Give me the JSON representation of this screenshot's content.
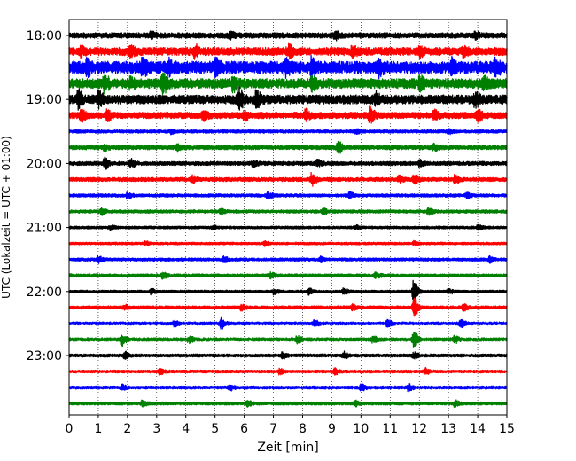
{
  "chart_data": {
    "type": "line",
    "title": "",
    "xlabel": "Zeit  [min]",
    "ylabel": "UTC (Lokalzeit = UTC + 01:00)",
    "xlim": [
      0,
      15
    ],
    "x_ticks": [
      "0",
      "1",
      "2",
      "3",
      "4",
      "5",
      "6",
      "7",
      "8",
      "9",
      "10",
      "11",
      "12",
      "13",
      "14",
      "15"
    ],
    "x_grid": true,
    "y_tick_labels": [
      "18:00",
      "19:00",
      "20:00",
      "21:00",
      "22:00",
      "23:00"
    ],
    "trace_interval_min": 15,
    "trace_color_cycle": [
      "#000000",
      "#ff0000",
      "#0000ff",
      "#008000"
    ],
    "traces": [
      {
        "start": "18:00",
        "color": "#000000",
        "level": 0.3,
        "events": [
          [
            2.8,
            0.25
          ],
          [
            5.5,
            0.3
          ],
          [
            9.1,
            0.35
          ],
          [
            13.9,
            0.4
          ]
        ]
      },
      {
        "start": "18:15",
        "color": "#ff0000",
        "level": 0.45,
        "events": [
          [
            0.4,
            0.35
          ],
          [
            2.1,
            0.4
          ],
          [
            4.3,
            0.5
          ],
          [
            7.5,
            0.55
          ],
          [
            9.7,
            0.5
          ],
          [
            12.0,
            0.4
          ],
          [
            13.5,
            0.35
          ]
        ]
      },
      {
        "start": "18:30",
        "color": "#0000ff",
        "level": 0.7,
        "events": [
          [
            0.6,
            0.6
          ],
          [
            2.5,
            0.6
          ],
          [
            3.4,
            0.55
          ],
          [
            5.0,
            0.55
          ],
          [
            7.4,
            0.6
          ],
          [
            8.3,
            0.7
          ],
          [
            10.6,
            0.6
          ],
          [
            13.1,
            0.55
          ],
          [
            14.6,
            0.65
          ]
        ]
      },
      {
        "start": "18:45",
        "color": "#008000",
        "level": 0.55,
        "events": [
          [
            1.2,
            0.7
          ],
          [
            2.1,
            0.6
          ],
          [
            3.2,
            0.9
          ],
          [
            5.6,
            0.6
          ],
          [
            8.3,
            0.55
          ],
          [
            12.0,
            0.5
          ],
          [
            14.2,
            0.45
          ]
        ]
      },
      {
        "start": "19:00",
        "color": "#000000",
        "level": 0.5,
        "events": [
          [
            0.3,
            0.8
          ],
          [
            1.0,
            0.6
          ],
          [
            5.8,
            1.2
          ],
          [
            6.4,
            0.8
          ],
          [
            10.5,
            0.5
          ],
          [
            13.9,
            0.6
          ]
        ]
      },
      {
        "start": "19:15",
        "color": "#ff0000",
        "level": 0.35,
        "events": [
          [
            0.4,
            0.5
          ],
          [
            1.3,
            0.6
          ],
          [
            4.6,
            0.5
          ],
          [
            6.0,
            0.4
          ],
          [
            8.1,
            0.5
          ],
          [
            10.3,
            0.8
          ],
          [
            12.5,
            0.4
          ],
          [
            14.0,
            0.5
          ]
        ]
      },
      {
        "start": "19:30",
        "color": "#0000ff",
        "level": 0.18,
        "events": [
          [
            3.5,
            0.2
          ],
          [
            9.8,
            0.2
          ],
          [
            13.0,
            0.2
          ]
        ]
      },
      {
        "start": "19:45",
        "color": "#008000",
        "level": 0.25,
        "events": [
          [
            1.2,
            0.3
          ],
          [
            3.7,
            0.3
          ],
          [
            9.2,
            0.6
          ],
          [
            12.5,
            0.3
          ]
        ]
      },
      {
        "start": "20:00",
        "color": "#000000",
        "level": 0.22,
        "events": [
          [
            1.2,
            0.6
          ],
          [
            2.1,
            0.4
          ],
          [
            6.3,
            0.3
          ],
          [
            8.5,
            0.3
          ],
          [
            12.0,
            0.3
          ]
        ]
      },
      {
        "start": "20:15",
        "color": "#ff0000",
        "level": 0.22,
        "events": [
          [
            4.2,
            0.4
          ],
          [
            8.3,
            0.6
          ],
          [
            11.3,
            0.3
          ],
          [
            11.8,
            0.45
          ],
          [
            13.2,
            0.4
          ]
        ]
      },
      {
        "start": "20:30",
        "color": "#0000ff",
        "level": 0.18,
        "events": [
          [
            2.0,
            0.25
          ],
          [
            6.8,
            0.3
          ],
          [
            9.6,
            0.3
          ],
          [
            13.6,
            0.25
          ]
        ]
      },
      {
        "start": "20:45",
        "color": "#008000",
        "level": 0.18,
        "events": [
          [
            1.1,
            0.3
          ],
          [
            5.2,
            0.25
          ],
          [
            8.7,
            0.25
          ],
          [
            12.3,
            0.3
          ]
        ]
      },
      {
        "start": "21:00",
        "color": "#000000",
        "level": 0.15,
        "events": [
          [
            1.4,
            0.25
          ],
          [
            4.9,
            0.2
          ],
          [
            9.8,
            0.2
          ],
          [
            14.0,
            0.25
          ]
        ]
      },
      {
        "start": "21:15",
        "color": "#ff0000",
        "level": 0.14,
        "events": [
          [
            2.6,
            0.2
          ],
          [
            6.7,
            0.2
          ],
          [
            11.8,
            0.2
          ]
        ]
      },
      {
        "start": "21:30",
        "color": "#0000ff",
        "level": 0.17,
        "events": [
          [
            1.0,
            0.3
          ],
          [
            5.3,
            0.25
          ],
          [
            8.6,
            0.25
          ],
          [
            14.4,
            0.3
          ]
        ]
      },
      {
        "start": "21:45",
        "color": "#008000",
        "level": 0.18,
        "events": [
          [
            3.2,
            0.25
          ],
          [
            6.9,
            0.25
          ],
          [
            10.5,
            0.25
          ]
        ]
      },
      {
        "start": "22:00",
        "color": "#000000",
        "level": 0.15,
        "events": [
          [
            2.8,
            0.25
          ],
          [
            7.0,
            0.25
          ],
          [
            8.2,
            0.3
          ],
          [
            9.4,
            0.3
          ],
          [
            11.8,
            1.3
          ],
          [
            13.0,
            0.25
          ]
        ]
      },
      {
        "start": "22:15",
        "color": "#ff0000",
        "level": 0.18,
        "events": [
          [
            1.9,
            0.25
          ],
          [
            5.9,
            0.25
          ],
          [
            9.7,
            0.25
          ],
          [
            11.8,
            1.0
          ],
          [
            13.5,
            0.3
          ]
        ]
      },
      {
        "start": "22:30",
        "color": "#0000ff",
        "level": 0.18,
        "events": [
          [
            3.6,
            0.25
          ],
          [
            5.2,
            0.5
          ],
          [
            8.4,
            0.3
          ],
          [
            10.9,
            0.3
          ],
          [
            13.4,
            0.4
          ]
        ]
      },
      {
        "start": "22:45",
        "color": "#008000",
        "level": 0.2,
        "events": [
          [
            1.8,
            0.6
          ],
          [
            4.1,
            0.3
          ],
          [
            7.8,
            0.3
          ],
          [
            10.4,
            0.3
          ],
          [
            11.8,
            0.8
          ],
          [
            13.2,
            0.3
          ]
        ]
      },
      {
        "start": "23:00",
        "color": "#000000",
        "level": 0.17,
        "events": [
          [
            1.9,
            0.35
          ],
          [
            7.3,
            0.3
          ],
          [
            9.4,
            0.35
          ],
          [
            11.8,
            0.3
          ]
        ]
      },
      {
        "start": "23:15",
        "color": "#ff0000",
        "level": 0.16,
        "events": [
          [
            3.1,
            0.25
          ],
          [
            7.2,
            0.25
          ],
          [
            9.1,
            0.3
          ],
          [
            12.2,
            0.35
          ]
        ]
      },
      {
        "start": "23:30",
        "color": "#0000ff",
        "level": 0.17,
        "events": [
          [
            1.8,
            0.25
          ],
          [
            5.5,
            0.25
          ],
          [
            10.0,
            0.3
          ],
          [
            11.6,
            0.35
          ]
        ]
      },
      {
        "start": "23:45",
        "color": "#008000",
        "level": 0.17,
        "events": [
          [
            2.5,
            0.25
          ],
          [
            6.1,
            0.25
          ],
          [
            9.8,
            0.25
          ],
          [
            13.2,
            0.3
          ]
        ]
      }
    ]
  }
}
